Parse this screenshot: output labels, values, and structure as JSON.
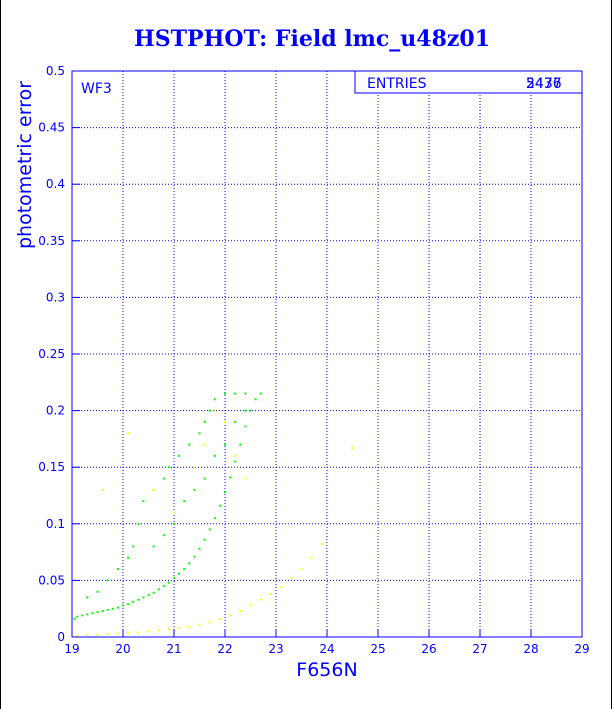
{
  "chart_data": {
    "type": "scatter",
    "title": "HSTPHOT: Field lmc_u48z01",
    "panel_label": "WF3",
    "stats_box": {
      "label": "ENTRIES",
      "values": [
        "2437",
        "5476"
      ]
    },
    "xlabel": "F656N",
    "ylabel": "photometric error",
    "xlim": [
      19,
      29
    ],
    "ylim": [
      0,
      0.5
    ],
    "x_ticks": [
      "19",
      "20",
      "21",
      "22",
      "23",
      "24",
      "25",
      "26",
      "27",
      "28",
      "29"
    ],
    "y_ticks": [
      "0",
      "0.05",
      "0.1",
      "0.15",
      "0.2",
      "0.25",
      "0.3",
      "0.35",
      "0.4",
      "0.45",
      "0.5"
    ],
    "grid": true,
    "series": [
      {
        "color": "#00ff00",
        "points": [
          [
            19.05,
            0.016
          ],
          [
            19.1,
            0.018
          ],
          [
            19.2,
            0.019
          ],
          [
            19.3,
            0.02
          ],
          [
            19.4,
            0.021
          ],
          [
            19.5,
            0.022
          ],
          [
            19.6,
            0.023
          ],
          [
            19.7,
            0.024
          ],
          [
            19.8,
            0.025
          ],
          [
            19.9,
            0.026
          ],
          [
            20.0,
            0.028
          ],
          [
            20.1,
            0.029
          ],
          [
            20.2,
            0.031
          ],
          [
            20.3,
            0.033
          ],
          [
            20.4,
            0.035
          ],
          [
            20.5,
            0.037
          ],
          [
            20.6,
            0.039
          ],
          [
            20.7,
            0.042
          ],
          [
            20.8,
            0.045
          ],
          [
            20.9,
            0.048
          ],
          [
            21.0,
            0.052
          ],
          [
            21.1,
            0.056
          ],
          [
            21.2,
            0.06
          ],
          [
            21.3,
            0.065
          ],
          [
            21.4,
            0.071
          ],
          [
            21.5,
            0.078
          ],
          [
            21.6,
            0.086
          ],
          [
            21.7,
            0.095
          ],
          [
            21.8,
            0.105
          ],
          [
            21.9,
            0.116
          ],
          [
            22.0,
            0.128
          ],
          [
            22.1,
            0.141
          ],
          [
            22.2,
            0.155
          ],
          [
            22.3,
            0.17
          ],
          [
            22.4,
            0.186
          ],
          [
            22.5,
            0.2
          ],
          [
            22.6,
            0.21
          ],
          [
            22.7,
            0.215
          ],
          [
            19.3,
            0.035
          ],
          [
            19.5,
            0.04
          ],
          [
            19.7,
            0.05
          ],
          [
            19.9,
            0.06
          ],
          [
            20.1,
            0.07
          ],
          [
            20.2,
            0.08
          ],
          [
            20.3,
            0.1
          ],
          [
            20.4,
            0.12
          ],
          [
            20.6,
            0.13
          ],
          [
            20.8,
            0.14
          ],
          [
            20.9,
            0.15
          ],
          [
            21.1,
            0.16
          ],
          [
            21.3,
            0.17
          ],
          [
            21.5,
            0.18
          ],
          [
            21.6,
            0.19
          ],
          [
            21.7,
            0.2
          ],
          [
            21.8,
            0.21
          ],
          [
            22.0,
            0.215
          ],
          [
            22.2,
            0.215
          ],
          [
            22.4,
            0.215
          ],
          [
            21.2,
            0.12
          ],
          [
            21.4,
            0.13
          ],
          [
            21.6,
            0.14
          ],
          [
            21.8,
            0.16
          ],
          [
            22.0,
            0.17
          ],
          [
            22.2,
            0.19
          ],
          [
            22.4,
            0.2
          ],
          [
            21.0,
            0.1
          ],
          [
            20.8,
            0.09
          ],
          [
            20.6,
            0.08
          ]
        ]
      },
      {
        "color": "#ffff00",
        "points": [
          [
            19.1,
            0.001
          ],
          [
            19.3,
            0.002
          ],
          [
            19.5,
            0.002
          ],
          [
            19.7,
            0.003
          ],
          [
            19.9,
            0.003
          ],
          [
            20.1,
            0.004
          ],
          [
            20.3,
            0.004
          ],
          [
            20.5,
            0.005
          ],
          [
            20.7,
            0.006
          ],
          [
            20.9,
            0.007
          ],
          [
            21.1,
            0.008
          ],
          [
            21.3,
            0.009
          ],
          [
            21.5,
            0.011
          ],
          [
            21.7,
            0.013
          ],
          [
            21.9,
            0.016
          ],
          [
            22.1,
            0.019
          ],
          [
            22.3,
            0.023
          ],
          [
            22.5,
            0.028
          ],
          [
            22.7,
            0.033
          ],
          [
            22.9,
            0.038
          ],
          [
            23.1,
            0.044
          ],
          [
            23.3,
            0.052
          ],
          [
            23.5,
            0.06
          ],
          [
            23.7,
            0.07
          ],
          [
            23.9,
            0.082
          ],
          [
            19.6,
            0.13
          ],
          [
            20.1,
            0.18
          ],
          [
            20.6,
            0.13
          ],
          [
            21.0,
            0.11
          ],
          [
            21.4,
            0.15
          ],
          [
            21.6,
            0.17
          ],
          [
            21.8,
            0.2
          ],
          [
            22.0,
            0.19
          ],
          [
            22.2,
            0.16
          ],
          [
            22.4,
            0.14
          ],
          [
            24.5,
            0.167
          ]
        ]
      }
    ]
  }
}
